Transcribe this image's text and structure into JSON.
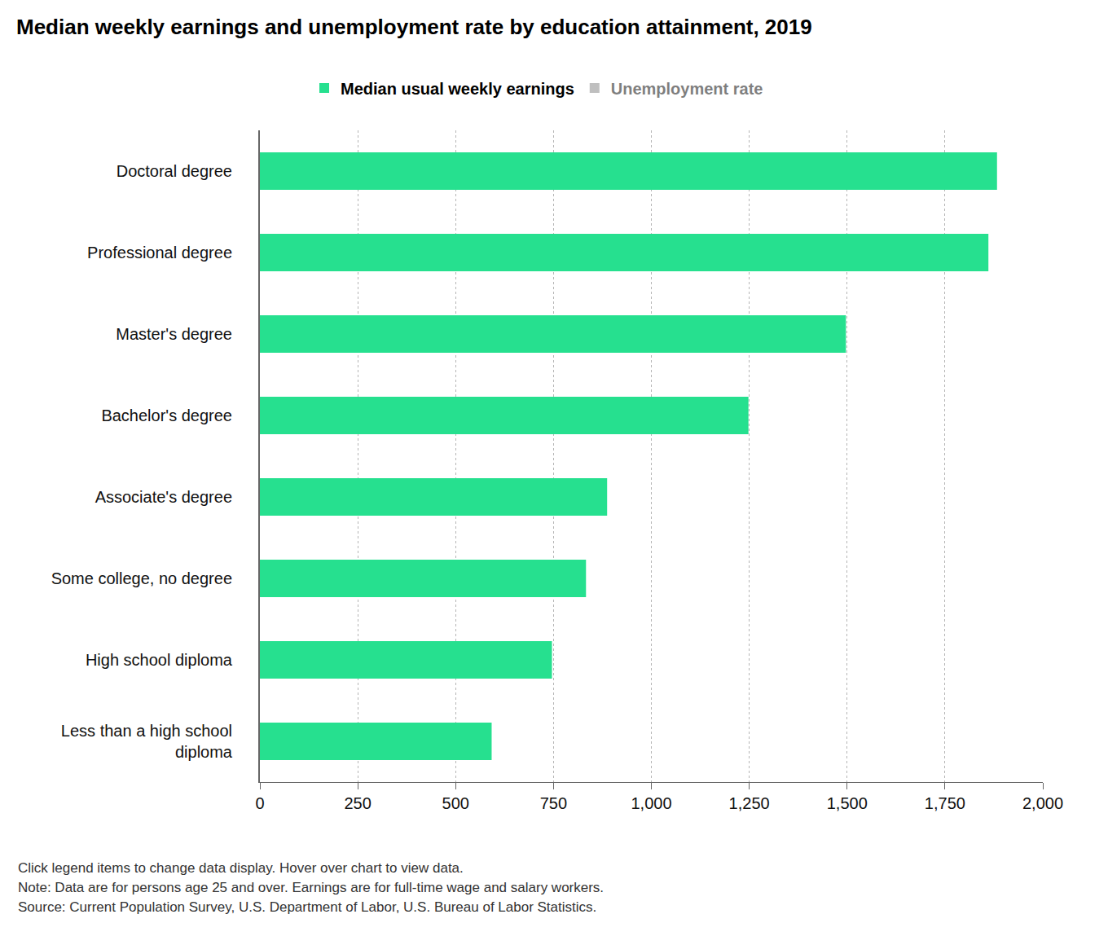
{
  "chart_data": {
    "type": "bar",
    "orientation": "horizontal",
    "title": "Median weekly earnings and unemployment rate by education attainment, 2019",
    "categories": [
      "Doctoral degree",
      "Professional degree",
      "Master's degree",
      "Bachelor's degree",
      "Associate's degree",
      "Some college, no degree",
      "High school diploma",
      "Less than a high school diploma"
    ],
    "series": [
      {
        "name": "Median usual weekly earnings",
        "color": "#26e08f",
        "values": [
          1883,
          1861,
          1497,
          1248,
          887,
          833,
          746,
          592
        ]
      },
      {
        "name": "Unemployment rate",
        "color": "#808080",
        "values": [
          null,
          null,
          null,
          null,
          null,
          null,
          null,
          null
        ]
      }
    ],
    "xlim": [
      0,
      2000
    ],
    "xticks": [
      0,
      250,
      500,
      750,
      {
        "value": 1000,
        "label": "1,000"
      },
      {
        "value": 1250,
        "label": "1,250"
      },
      {
        "value": 1500,
        "label": "1,500"
      },
      {
        "value": 1750,
        "label": "1,750"
      },
      {
        "value": 2000,
        "label": "2,000"
      }
    ],
    "grid": true,
    "legend": "top",
    "annotations": [
      "Click legend items to change data display. Hover over chart to view data.",
      "Note: Data are for persons age 25 and over. Earnings are for full-time wage and salary workers.",
      "Source: Current Population Survey, U.S. Department of Labor, U.S. Bureau of Labor Statistics."
    ]
  }
}
